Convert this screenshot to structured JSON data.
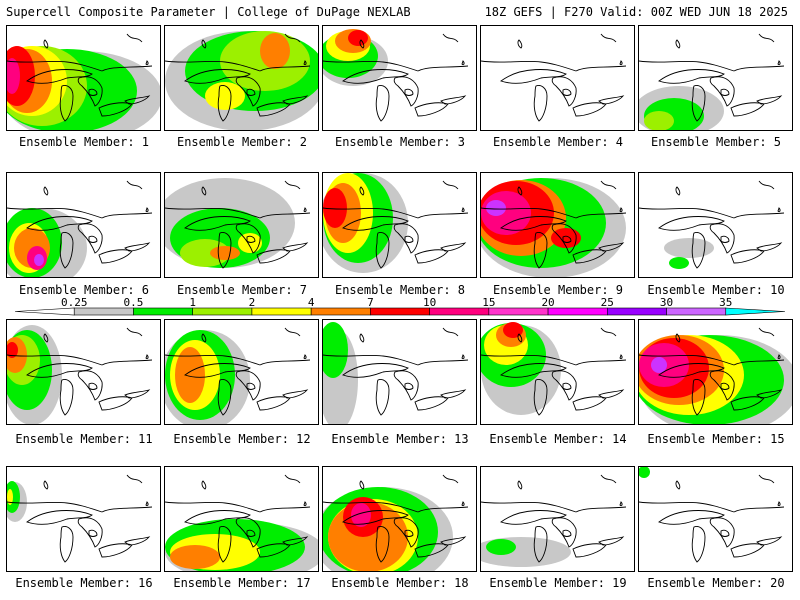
{
  "header": {
    "title_left": "Supercell Composite Parameter | College of DuPage NEXLAB",
    "title_right": "18Z GEFS | F270 Valid: 00Z WED JUN 18 2025"
  },
  "member_label_prefix": "Ensemble Member:",
  "members": [
    {
      "number": "1",
      "blobs": [
        [
          "#c8c8c8",
          75,
          70,
          80,
          45
        ],
        [
          "#00ee00",
          60,
          65,
          70,
          42
        ],
        [
          "#9cf000",
          35,
          60,
          45,
          40
        ],
        [
          "#ffff00",
          25,
          55,
          35,
          35
        ],
        [
          "#ff7f00",
          20,
          55,
          25,
          32
        ],
        [
          "#ff0000",
          10,
          50,
          18,
          30
        ],
        [
          "#ff007f",
          5,
          50,
          8,
          18
        ]
      ]
    },
    {
      "number": "2",
      "blobs": [
        [
          "#c8c8c8",
          80,
          55,
          80,
          50
        ],
        [
          "#00ee00",
          90,
          45,
          70,
          40
        ],
        [
          "#9cf000",
          100,
          35,
          45,
          30
        ],
        [
          "#ff7f00",
          110,
          25,
          15,
          18
        ],
        [
          "#ffff00",
          60,
          70,
          20,
          14
        ]
      ]
    },
    {
      "number": "3",
      "blobs": [
        [
          "#c8c8c8",
          30,
          35,
          35,
          25
        ],
        [
          "#00ee00",
          25,
          30,
          30,
          22
        ],
        [
          "#ffff00",
          25,
          20,
          22,
          15
        ],
        [
          "#ff7f00",
          30,
          15,
          18,
          12
        ],
        [
          "#ff0000",
          35,
          12,
          10,
          8
        ]
      ]
    },
    {
      "number": "4",
      "blobs": []
    },
    {
      "number": "5",
      "blobs": [
        [
          "#c8c8c8",
          40,
          85,
          45,
          25
        ],
        [
          "#00ee00",
          35,
          90,
          30,
          18
        ],
        [
          "#9cf000",
          20,
          95,
          15,
          10
        ]
      ]
    },
    {
      "number": "6",
      "blobs": [
        [
          "#c8c8c8",
          35,
          75,
          45,
          40
        ],
        [
          "#00ee00",
          25,
          70,
          30,
          35
        ],
        [
          "#ffff00",
          22,
          75,
          20,
          25
        ],
        [
          "#ff7f00",
          25,
          75,
          18,
          20
        ],
        [
          "#ff007f",
          30,
          85,
          10,
          12
        ],
        [
          "#cc33ff",
          32,
          87,
          5,
          6
        ]
      ]
    },
    {
      "number": "7",
      "blobs": [
        [
          "#c8c8c8",
          60,
          50,
          70,
          45
        ],
        [
          "#00ee00",
          55,
          65,
          50,
          30
        ],
        [
          "#9cf000",
          40,
          80,
          25,
          14
        ],
        [
          "#ffff00",
          85,
          70,
          12,
          10
        ],
        [
          "#ff7f00",
          60,
          80,
          15,
          7
        ]
      ]
    },
    {
      "number": "8",
      "blobs": [
        [
          "#c8c8c8",
          40,
          50,
          45,
          50
        ],
        [
          "#00ee00",
          35,
          45,
          35,
          45
        ],
        [
          "#ffff00",
          25,
          40,
          25,
          40
        ],
        [
          "#ff7f00",
          20,
          40,
          18,
          30
        ],
        [
          "#ff0000",
          12,
          35,
          12,
          20
        ]
      ]
    },
    {
      "number": "9",
      "blobs": [
        [
          "#c8c8c8",
          70,
          55,
          75,
          50
        ],
        [
          "#00ee00",
          60,
          50,
          65,
          45
        ],
        [
          "#ff7f00",
          40,
          45,
          45,
          38
        ],
        [
          "#ff0000",
          35,
          40,
          38,
          32
        ],
        [
          "#ff007f",
          25,
          40,
          25,
          22
        ],
        [
          "#cc33ff",
          15,
          35,
          10,
          8
        ],
        [
          "#ff0000",
          85,
          65,
          15,
          10
        ]
      ]
    },
    {
      "number": "10",
      "blobs": [
        [
          "#c8c8c8",
          50,
          75,
          25,
          10
        ],
        [
          "#00ee00",
          40,
          90,
          10,
          6
        ]
      ]
    },
    {
      "number": "11",
      "blobs": [
        [
          "#c8c8c8",
          25,
          55,
          30,
          50
        ],
        [
          "#00ee00",
          20,
          50,
          25,
          40
        ],
        [
          "#9cf000",
          15,
          40,
          18,
          25
        ],
        [
          "#ff7f00",
          8,
          35,
          12,
          18
        ],
        [
          "#ff0000",
          5,
          30,
          6,
          8
        ]
      ]
    },
    {
      "number": "12",
      "blobs": [
        [
          "#c8c8c8",
          40,
          60,
          45,
          50
        ],
        [
          "#00ee00",
          35,
          55,
          35,
          45
        ],
        [
          "#ffff00",
          30,
          55,
          25,
          35
        ],
        [
          "#ff7f00",
          25,
          55,
          15,
          28
        ]
      ]
    },
    {
      "number": "13",
      "blobs": [
        [
          "#c8c8c8",
          15,
          60,
          20,
          50
        ],
        [
          "#00ee00",
          10,
          30,
          15,
          28
        ]
      ]
    },
    {
      "number": "14",
      "blobs": [
        [
          "#c8c8c8",
          40,
          50,
          40,
          45
        ],
        [
          "#00ee00",
          30,
          35,
          35,
          32
        ],
        [
          "#ffff00",
          25,
          25,
          22,
          20
        ],
        [
          "#ff7f00",
          30,
          15,
          15,
          12
        ],
        [
          "#ff0000",
          32,
          10,
          10,
          8
        ]
      ]
    },
    {
      "number": "15",
      "blobs": [
        [
          "#c8c8c8",
          80,
          65,
          80,
          50
        ],
        [
          "#00ee00",
          70,
          60,
          75,
          45
        ],
        [
          "#ffff00",
          50,
          55,
          55,
          40
        ],
        [
          "#ff7f00",
          40,
          50,
          45,
          35
        ],
        [
          "#ff0000",
          35,
          48,
          35,
          30
        ],
        [
          "#ff007f",
          25,
          45,
          25,
          22
        ],
        [
          "#cc33ff",
          20,
          45,
          8,
          8
        ]
      ]
    },
    {
      "number": "16",
      "blobs": [
        [
          "#c8c8c8",
          8,
          35,
          12,
          20
        ],
        [
          "#00ee00",
          5,
          30,
          8,
          16
        ],
        [
          "#ffff00",
          3,
          30,
          3,
          8
        ]
      ]
    },
    {
      "number": "17",
      "blobs": [
        [
          "#c8c8c8",
          80,
          85,
          80,
          30
        ],
        [
          "#00ee00",
          70,
          80,
          70,
          28
        ],
        [
          "#ffff00",
          50,
          85,
          45,
          18
        ],
        [
          "#ff7f00",
          30,
          90,
          25,
          12
        ]
      ]
    },
    {
      "number": "18",
      "blobs": [
        [
          "#c8c8c8",
          60,
          70,
          70,
          50
        ],
        [
          "#00ee00",
          55,
          65,
          60,
          45
        ],
        [
          "#ffff00",
          50,
          70,
          45,
          38
        ],
        [
          "#ff7f00",
          45,
          70,
          40,
          35
        ],
        [
          "#ff0000",
          40,
          50,
          20,
          20
        ],
        [
          "#ff007f",
          38,
          48,
          10,
          12
        ]
      ]
    },
    {
      "number": "19",
      "blobs": [
        [
          "#c8c8c8",
          40,
          85,
          50,
          15
        ],
        [
          "#00ee00",
          20,
          80,
          15,
          8
        ]
      ]
    },
    {
      "number": "20",
      "blobs": [
        [
          "#00ee00",
          5,
          5,
          6,
          6
        ]
      ]
    }
  ],
  "colorbar": {
    "labels": [
      "0.25",
      "0.5",
      "1",
      "2",
      "4",
      "7",
      "10",
      "15",
      "20",
      "25",
      "30",
      "35"
    ],
    "colors": [
      "#ffffff",
      "#c8c8c8",
      "#00ee00",
      "#9cf000",
      "#ffff00",
      "#ff7f00",
      "#ff0000",
      "#ff007f",
      "#ff33cc",
      "#ff00ff",
      "#9900ff",
      "#cc66ff",
      "#00ffff"
    ]
  }
}
